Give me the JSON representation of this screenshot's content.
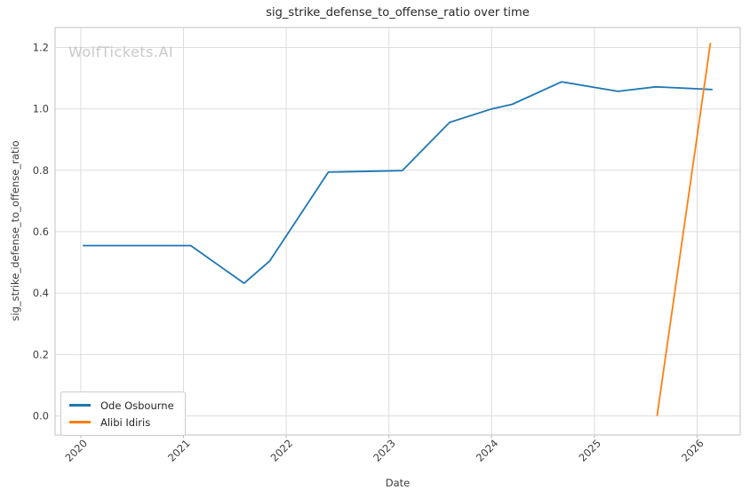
{
  "chart_data": {
    "type": "line",
    "title": "sig_strike_defense_to_offense_ratio over time",
    "xlabel": "Date",
    "ylabel": "sig_strike_defense_to_offense_ratio",
    "watermark": "WolfTickets.AI",
    "grid": true,
    "legend_position": "lower left",
    "xlim": [
      2019.75,
      2026.42
    ],
    "ylim": [
      -0.062,
      1.265
    ],
    "x_ticks": [
      2020,
      2021,
      2022,
      2023,
      2024,
      2025,
      2026
    ],
    "x_tick_labels": [
      "2020",
      "2021",
      "2022",
      "2023",
      "2024",
      "2025",
      "2026"
    ],
    "y_ticks": [
      0.0,
      0.2,
      0.4,
      0.6,
      0.8,
      1.0,
      1.2
    ],
    "y_tick_labels": [
      "0.0",
      "0.2",
      "0.4",
      "0.6",
      "0.8",
      "1.0",
      "1.2"
    ],
    "series": [
      {
        "name": "Ode Osbourne",
        "color": "#1f77b4",
        "x": [
          2020.02,
          2021.07,
          2021.59,
          2021.84,
          2022.41,
          2023.13,
          2023.59,
          2024.0,
          2024.2,
          2024.68,
          2025.23,
          2025.6,
          2026.15
        ],
        "y": [
          0.555,
          0.555,
          0.432,
          0.505,
          0.794,
          0.799,
          0.956,
          1.0,
          1.015,
          1.088,
          1.057,
          1.072,
          1.063
        ]
      },
      {
        "name": "Alibi Idiris",
        "color": "#ff7f0e",
        "x": [
          2025.61,
          2026.13
        ],
        "y": [
          0.0,
          1.215
        ]
      }
    ],
    "colors": {
      "grid": "#dddddd",
      "spine": "#cccccc",
      "tick_mark": "#b5b5b5",
      "tick_label": "#3d3d3d",
      "title": "#262626",
      "watermark": "#c9c9c9",
      "background": "#ffffff"
    }
  }
}
